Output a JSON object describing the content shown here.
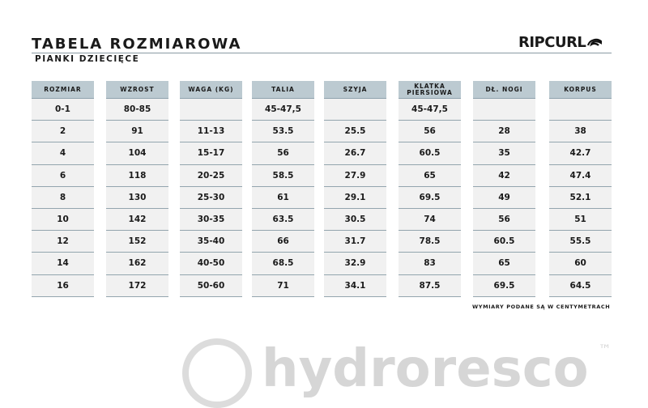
{
  "header": {
    "title": "TABELA ROZMIAROWA",
    "subtitle": "PIANKI DZIECIĘCE",
    "brand": "RIPCURL"
  },
  "table": {
    "columns": [
      "ROZMIAR",
      "WZROST",
      "WAGA (KG)",
      "TALIA",
      "SZYJA",
      "KLATKA PIERSIOWA",
      "DŁ. NOGI",
      "KORPUS"
    ],
    "rows": [
      [
        "0-1",
        "80-85",
        "",
        "45-47,5",
        "",
        "45-47,5",
        "",
        ""
      ],
      [
        "2",
        "91",
        "11-13",
        "53.5",
        "25.5",
        "56",
        "28",
        "38"
      ],
      [
        "4",
        "104",
        "15-17",
        "56",
        "26.7",
        "60.5",
        "35",
        "42.7"
      ],
      [
        "6",
        "118",
        "20-25",
        "58.5",
        "27.9",
        "65",
        "42",
        "47.4"
      ],
      [
        "8",
        "130",
        "25-30",
        "61",
        "29.1",
        "69.5",
        "49",
        "52.1"
      ],
      [
        "10",
        "142",
        "30-35",
        "63.5",
        "30.5",
        "74",
        "56",
        "51"
      ],
      [
        "12",
        "152",
        "35-40",
        "66",
        "31.7",
        "78.5",
        "60.5",
        "55.5"
      ],
      [
        "14",
        "162",
        "40-50",
        "68.5",
        "32.9",
        "83",
        "65",
        "60"
      ],
      [
        "16",
        "172",
        "50-60",
        "71",
        "34.1",
        "87.5",
        "69.5",
        "64.5"
      ]
    ]
  },
  "note": "WYMIARY PODANE SĄ W CENTYMETRACH",
  "watermark": {
    "text": "hydroresco",
    "mark": "™"
  }
}
